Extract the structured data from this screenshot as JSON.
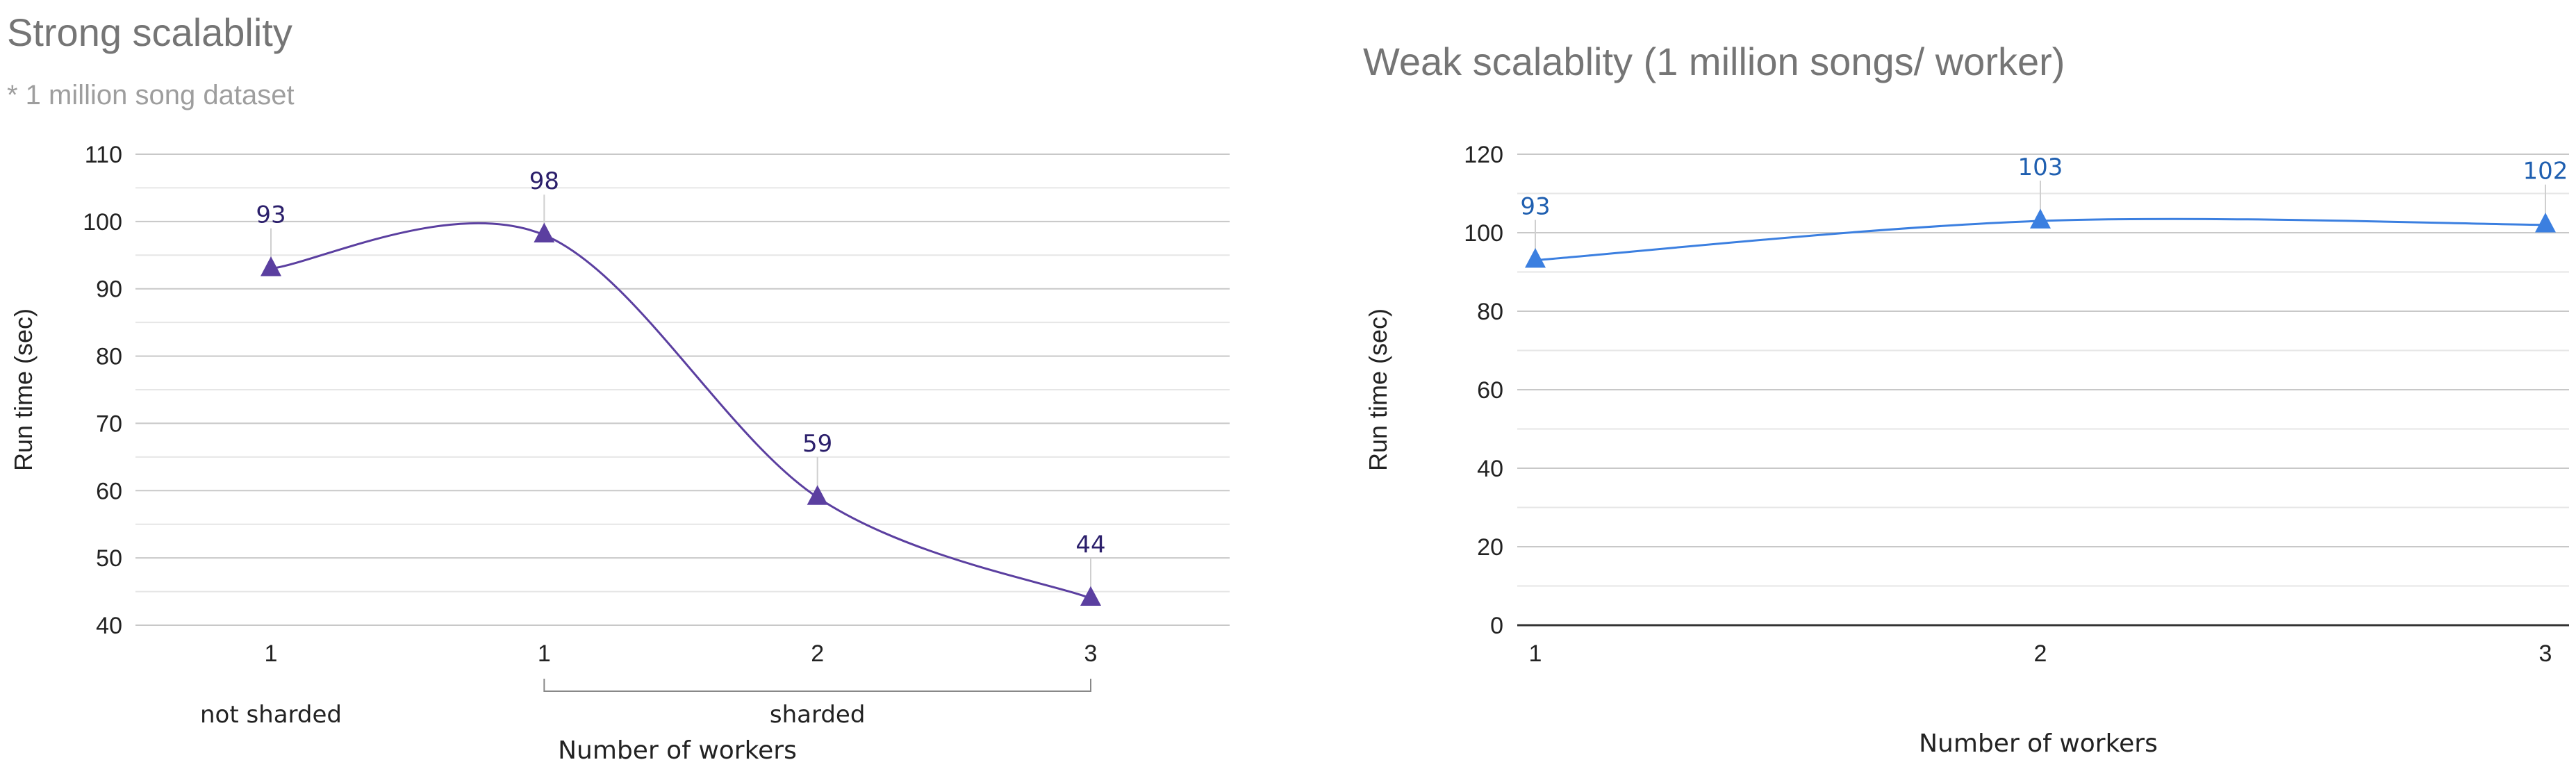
{
  "chart_data": [
    {
      "type": "line",
      "title": "Strong scalablity",
      "subtitle": "* 1 million song dataset",
      "xlabel": "Number of workers",
      "ylabel": "Run time (sec)",
      "categories": [
        "1",
        "1",
        "2",
        "3"
      ],
      "category_groups": [
        {
          "label": "not sharded",
          "from": 0,
          "to": 0
        },
        {
          "label": "sharded",
          "from": 1,
          "to": 3
        }
      ],
      "ylim": [
        40,
        110
      ],
      "yticks": [
        40,
        50,
        60,
        70,
        80,
        90,
        100,
        110
      ],
      "minor_gridlines": true,
      "smooth": true,
      "marker": "triangle",
      "series": [
        {
          "name": "Run time",
          "values": [
            93,
            98,
            59,
            44
          ],
          "labels": [
            "93",
            "98",
            "59",
            "44"
          ],
          "color": "#5b3fa0"
        }
      ],
      "label_color": "#2b1f6b"
    },
    {
      "type": "line",
      "title": "Weak scalablity (1 million songs/ worker)",
      "subtitle": "",
      "xlabel": "Number of workers",
      "ylabel": "Run time (sec)",
      "categories": [
        "1",
        "2",
        "3"
      ],
      "ylim": [
        0,
        120
      ],
      "yticks": [
        0,
        20,
        40,
        60,
        80,
        100,
        120
      ],
      "minor_gridlines": true,
      "smooth": true,
      "marker": "triangle",
      "series": [
        {
          "name": "Run time",
          "values": [
            93,
            103,
            102
          ],
          "labels": [
            "93",
            "103",
            "102"
          ],
          "color": "#3b7fe0"
        }
      ],
      "label_color": "#1f5fb0"
    }
  ]
}
